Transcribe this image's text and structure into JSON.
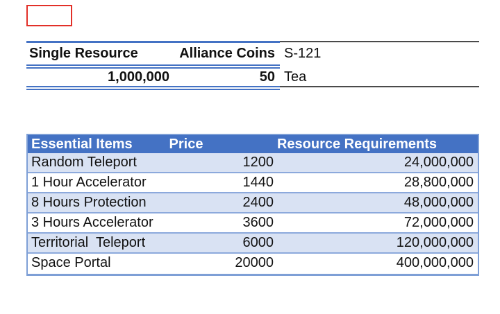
{
  "annotation": {
    "red_box_color": "#e23028"
  },
  "summary_table": {
    "col_a_header": "Single Resource",
    "col_b_header": "Alliance Coins",
    "server_label": "S-121",
    "resource_value": "1,000,000",
    "coins_value": "50",
    "server_value": "Tea"
  },
  "items_table": {
    "headers": [
      "Essential Items",
      "Price",
      "Resource Requirements"
    ],
    "rows": [
      {
        "item": "Random Teleport",
        "price": "1200",
        "requirement": "24,000,000"
      },
      {
        "item": "1 Hour Accelerator",
        "price": "1440",
        "requirement": "28,800,000"
      },
      {
        "item": "8 Hours Protection",
        "price": "2400",
        "requirement": "48,000,000"
      },
      {
        "item": "3 Hours Accelerator",
        "price": "3600",
        "requirement": "72,000,000"
      },
      {
        "item": "Territorial  Teleport",
        "price": "6000",
        "requirement": "120,000,000"
      },
      {
        "item": "Space Portal",
        "price": "20000",
        "requirement": "400,000,000"
      }
    ]
  },
  "colors": {
    "header_blue": "#4472c4",
    "alt_row_blue": "#d9e2f3",
    "table_border_blue": "#7e9fd6",
    "row_separator_blue": "#8ca9dc",
    "accent_line_blue": "#4472c4",
    "gray_line": "#4a4a4a",
    "red_highlight": "#e23028"
  }
}
